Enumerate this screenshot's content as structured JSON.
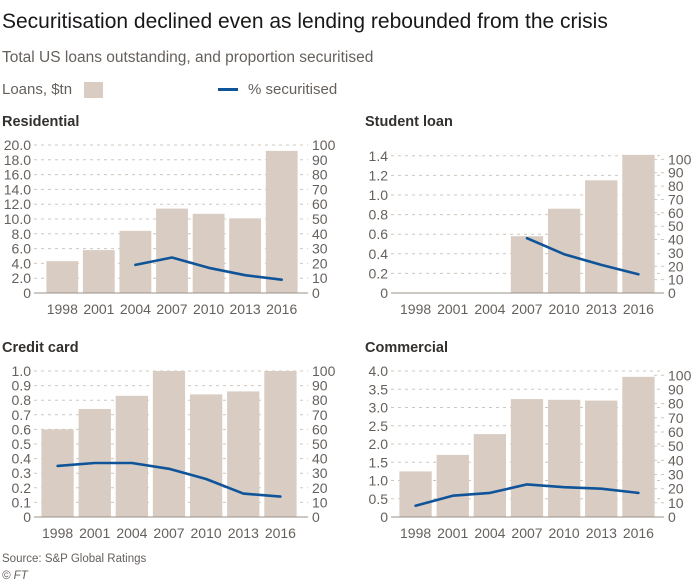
{
  "header": {
    "title": "Securitisation declined even as lending rebounded from the crisis",
    "subtitle": "Total US loans outstanding, and proportion securitised"
  },
  "legend": {
    "bars_label": "Loans, $tn",
    "line_label": "% securitised"
  },
  "colors": {
    "bar": "#d9ccc2",
    "line": "#0f5499",
    "grid": "#cfc7bf",
    "axis": "#9a918a"
  },
  "chart_data": [
    {
      "type": "bar",
      "title": "Residential",
      "categories": [
        "1998",
        "2001",
        "2004",
        "2007",
        "2010",
        "2013",
        "2016"
      ],
      "series": [
        {
          "values": [
            4.3,
            5.8,
            8.4,
            11.4,
            10.7,
            10.1,
            19.2
          ]
        },
        {
          "values": [
            null,
            null,
            19,
            24,
            17,
            12,
            9
          ]
        }
      ],
      "ylim": [
        0,
        20
      ],
      "yticks": [
        0,
        2,
        4,
        6,
        8,
        10,
        12,
        14,
        16,
        18,
        20
      ],
      "ytick_labels": [
        "0",
        "2.0",
        "4.0",
        "6.0",
        "8.0",
        "10.0",
        "12.0",
        "14.0",
        "16.0",
        "18.0",
        "20.0"
      ],
      "y2lim": [
        0,
        100
      ],
      "y2ticks": [
        0,
        10,
        20,
        30,
        40,
        50,
        60,
        70,
        80,
        90,
        100
      ],
      "y2tick_labels": [
        "0",
        "10",
        "20",
        "30",
        "40",
        "50",
        "60",
        "70",
        "80",
        "90",
        "100"
      ],
      "grid": true
    },
    {
      "type": "bar",
      "title": "Student loan",
      "categories": [
        "1998",
        "2001",
        "2004",
        "2007",
        "2010",
        "2013",
        "2016"
      ],
      "series": [
        {
          "values": [
            null,
            null,
            null,
            0.58,
            0.86,
            1.15,
            1.41
          ]
        },
        {
          "values": [
            null,
            null,
            null,
            41,
            29,
            21,
            14
          ]
        }
      ],
      "ylim": [
        0,
        1.5
      ],
      "yticks": [
        0,
        0.2,
        0.4,
        0.6,
        0.8,
        1.0,
        1.2,
        1.4
      ],
      "ytick_labels": [
        "0",
        "0.2",
        "0.4",
        "0.6",
        "0.8",
        "1.0",
        "1.2",
        "1.4"
      ],
      "y2lim": [
        0,
        110
      ],
      "y2ticks": [
        0,
        10,
        20,
        30,
        40,
        50,
        60,
        70,
        80,
        90,
        100
      ],
      "y2tick_labels": [
        "0",
        "10",
        "20",
        "30",
        "40",
        "50",
        "60",
        "70",
        "80",
        "90",
        "100"
      ],
      "grid": true
    },
    {
      "type": "bar",
      "title": "Credit card",
      "categories": [
        "1998",
        "2001",
        "2004",
        "2007",
        "2010",
        "2013",
        "2016"
      ],
      "series": [
        {
          "values": [
            0.6,
            0.74,
            0.83,
            1.0,
            0.84,
            0.86,
            1.0
          ]
        },
        {
          "values": [
            35,
            37,
            37,
            33,
            26,
            16,
            14
          ]
        }
      ],
      "ylim": [
        0,
        1.0
      ],
      "yticks": [
        0,
        0.1,
        0.2,
        0.3,
        0.4,
        0.5,
        0.6,
        0.7,
        0.8,
        0.9,
        1.0
      ],
      "ytick_labels": [
        "0",
        "0.1",
        "0.2",
        "0.3",
        "0.4",
        "0.5",
        "0.6",
        "0.7",
        "0.8",
        "0.9",
        "1.0"
      ],
      "y2lim": [
        0,
        100
      ],
      "y2ticks": [
        0,
        10,
        20,
        30,
        40,
        50,
        60,
        70,
        80,
        90,
        100
      ],
      "y2tick_labels": [
        "0",
        "10",
        "20",
        "30",
        "40",
        "50",
        "60",
        "70",
        "80",
        "90",
        "100"
      ],
      "grid": true
    },
    {
      "type": "bar",
      "title": "Commercial",
      "categories": [
        "1998",
        "2001",
        "2004",
        "2007",
        "2010",
        "2013",
        "2016"
      ],
      "series": [
        {
          "values": [
            1.25,
            1.7,
            2.27,
            3.23,
            3.21,
            3.19,
            3.84
          ]
        },
        {
          "values": [
            8,
            15,
            17,
            23,
            21,
            20,
            17
          ]
        }
      ],
      "ylim": [
        0,
        4.0
      ],
      "yticks": [
        0,
        0.5,
        1.0,
        1.5,
        2.0,
        2.5,
        3.0,
        3.5,
        4.0
      ],
      "ytick_labels": [
        "0",
        "0.5",
        "1.0",
        "1.5",
        "2.0",
        "2.5",
        "3.0",
        "3.5",
        "4.0"
      ],
      "y2lim": [
        0,
        103
      ],
      "y2ticks": [
        0,
        10,
        20,
        30,
        40,
        50,
        60,
        70,
        80,
        90,
        100
      ],
      "y2tick_labels": [
        "0",
        "10",
        "20",
        "30",
        "40",
        "50",
        "60",
        "70",
        "80",
        "90",
        "100"
      ],
      "grid": true
    }
  ],
  "footer": {
    "source": "Source: S&P Global Ratings",
    "copyright": "© FT"
  }
}
